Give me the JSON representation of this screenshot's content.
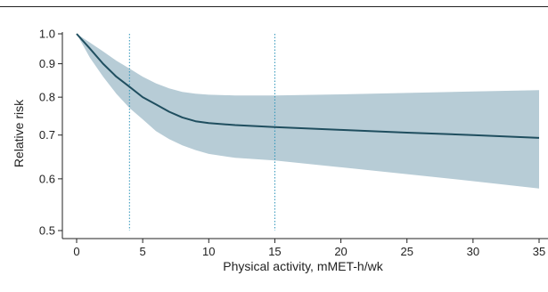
{
  "chart_data": {
    "type": "line",
    "title": "",
    "xlabel": "Physical activity, mMET-h/wk",
    "ylabel": "Relative risk",
    "xlim": [
      0,
      35
    ],
    "ylim": [
      0.5,
      1.0
    ],
    "y_scale": "log",
    "x_ticks": [
      0,
      5,
      10,
      15,
      20,
      25,
      30,
      35
    ],
    "y_ticks": [
      0.5,
      0.6,
      0.7,
      0.8,
      0.9,
      1.0
    ],
    "y_tick_labels": [
      "0.5",
      "0.6",
      "0.7",
      "0.8",
      "0.9",
      "1.0"
    ],
    "grid": false,
    "reference_lines_x": [
      4,
      15
    ],
    "series": [
      {
        "x": [
          0,
          1,
          2,
          3,
          4,
          5,
          6,
          7,
          8,
          9,
          10,
          12,
          15,
          20,
          25,
          30,
          35
        ],
        "y": [
          1.0,
          0.95,
          0.9,
          0.86,
          0.83,
          0.8,
          0.78,
          0.76,
          0.745,
          0.735,
          0.73,
          0.725,
          0.72,
          0.713,
          0.706,
          0.7,
          0.693
        ],
        "ci_lower": [
          1.0,
          0.92,
          0.86,
          0.81,
          0.77,
          0.74,
          0.71,
          0.69,
          0.675,
          0.664,
          0.655,
          0.646,
          0.64,
          0.625,
          0.61,
          0.595,
          0.58
        ],
        "ci_upper": [
          1.0,
          0.97,
          0.94,
          0.91,
          0.885,
          0.86,
          0.84,
          0.825,
          0.815,
          0.81,
          0.807,
          0.805,
          0.805,
          0.808,
          0.812,
          0.816,
          0.82
        ]
      }
    ],
    "colors": {
      "line": "#1f4e5f",
      "band": "#b7ccd6",
      "refline": "#2a93b8",
      "axis": "#222222"
    }
  }
}
